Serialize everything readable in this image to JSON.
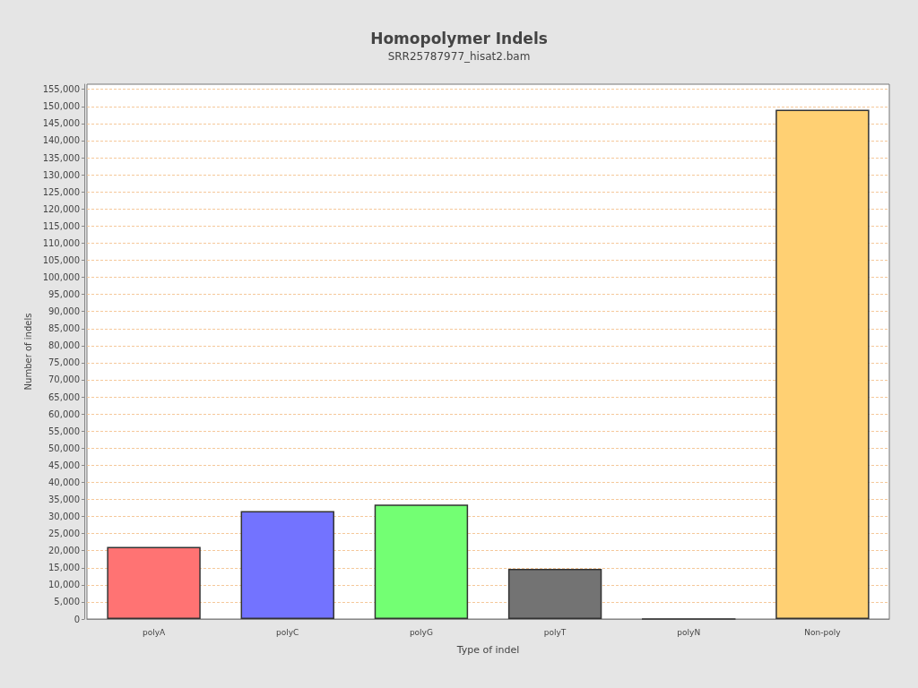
{
  "chart_data": {
    "type": "bar",
    "title": "Homopolymer Indels",
    "subtitle": "SRR25787977_hisat2.bam",
    "xlabel": "Type of indel",
    "ylabel": "Number of indels",
    "categories": [
      "polyA",
      "polyC",
      "polyG",
      "polyT",
      "polyN",
      "Non-poly"
    ],
    "values": [
      21100,
      31600,
      33500,
      14700,
      0,
      149000
    ],
    "colors": [
      "#ff7373",
      "#7373ff",
      "#73ff73",
      "#737373",
      "#333333",
      "#ffd073"
    ],
    "ylim": [
      0,
      156500
    ],
    "yticks": [
      {
        "value": 0,
        "label": "0"
      },
      {
        "value": 5000,
        "label": "5,000"
      },
      {
        "value": 10000,
        "label": "10,000"
      },
      {
        "value": 15000,
        "label": "15,000"
      },
      {
        "value": 20000,
        "label": "20,000"
      },
      {
        "value": 25000,
        "label": "25,000"
      },
      {
        "value": 30000,
        "label": "30,000"
      },
      {
        "value": 35000,
        "label": "35,000"
      },
      {
        "value": 40000,
        "label": "40,000"
      },
      {
        "value": 45000,
        "label": "45,000"
      },
      {
        "value": 50000,
        "label": "50,000"
      },
      {
        "value": 55000,
        "label": "55,000"
      },
      {
        "value": 60000,
        "label": "60,000"
      },
      {
        "value": 65000,
        "label": "65,000"
      },
      {
        "value": 70000,
        "label": "70,000"
      },
      {
        "value": 75000,
        "label": "75,000"
      },
      {
        "value": 80000,
        "label": "80,000"
      },
      {
        "value": 85000,
        "label": "85,000"
      },
      {
        "value": 90000,
        "label": "90,000"
      },
      {
        "value": 95000,
        "label": "95,000"
      },
      {
        "value": 100000,
        "label": "100,000"
      },
      {
        "value": 105000,
        "label": "105,000"
      },
      {
        "value": 110000,
        "label": "110,000"
      },
      {
        "value": 115000,
        "label": "115,000"
      },
      {
        "value": 120000,
        "label": "120,000"
      },
      {
        "value": 125000,
        "label": "125,000"
      },
      {
        "value": 130000,
        "label": "130,000"
      },
      {
        "value": 135000,
        "label": "135,000"
      },
      {
        "value": 140000,
        "label": "140,000"
      },
      {
        "value": 145000,
        "label": "145,000"
      },
      {
        "value": 150000,
        "label": "150,000"
      },
      {
        "value": 155000,
        "label": "155,000"
      }
    ],
    "grid": "y"
  }
}
